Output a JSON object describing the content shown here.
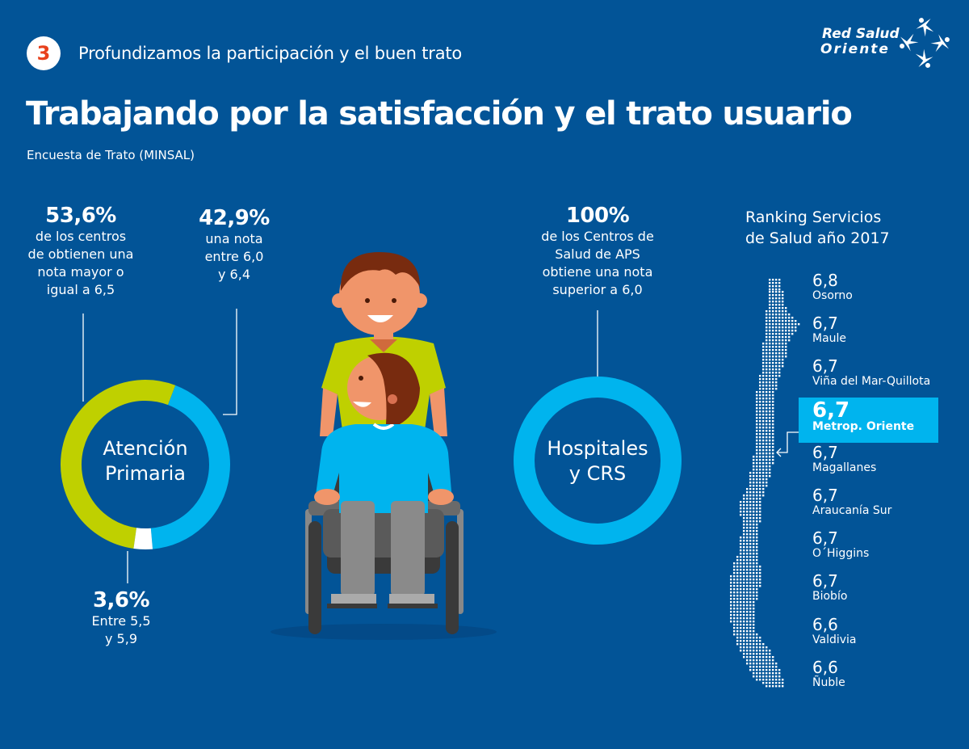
{
  "header": {
    "section_number": "3",
    "section_title": "Profundizamos la participación y el buen trato",
    "title": "Trabajando por la satisfacción y el trato usuario",
    "subtitle": "Encuesta de Trato (MINSAL)",
    "logo_line1": "Red Salud",
    "logo_line2": "Oriente"
  },
  "colors": {
    "background": "#025497",
    "green": "#bfd000",
    "cyan": "#00b4ee",
    "white": "#ffffff",
    "badge_number": "#e8401c"
  },
  "atencion_primaria": {
    "label_line1": "Atención",
    "label_line2": "Primaria",
    "stats": [
      {
        "value": "53,6%",
        "desc_lines": [
          "de los centros",
          "de obtienen una",
          "nota mayor o",
          "igual a 6,5"
        ]
      },
      {
        "value": "42,9%",
        "desc_lines": [
          "una nota",
          "entre 6,0",
          "y 6,4"
        ]
      },
      {
        "value": "3,6%",
        "desc_lines": [
          "Entre 5,5",
          "y 5,9"
        ]
      }
    ]
  },
  "hospitales": {
    "label_line1": "Hospitales",
    "label_line2": "y CRS",
    "stat": {
      "value": "100%",
      "desc_lines": [
        "de los Centros de",
        "Salud de APS",
        "obtiene una nota",
        "superior a 6,0"
      ]
    }
  },
  "illustration": {
    "description": "caregiver-pushing-wheelchair-user-icon"
  },
  "chart_data": [
    {
      "type": "pie",
      "title": "Atención Primaria",
      "donut": true,
      "categories": [
        "Nota ≥ 6,5",
        "Nota entre 6,0 y 6,4",
        "Nota entre 5,5 y 5,9"
      ],
      "values": [
        53.6,
        42.9,
        3.6
      ],
      "colors": [
        "#bfd000",
        "#00b4ee",
        "#ffffff"
      ]
    },
    {
      "type": "pie",
      "title": "Hospitales y CRS",
      "donut": true,
      "categories": [
        "Nota superior a 6,0"
      ],
      "values": [
        100
      ],
      "colors": [
        "#00b4ee"
      ]
    },
    {
      "type": "table",
      "title": "Ranking Servicios de Salud año 2017",
      "title_line1": "Ranking Servicios",
      "title_line2": "de Salud año 2017",
      "columns": [
        "score",
        "service"
      ],
      "rows": [
        {
          "score": "6,8",
          "service": "Osorno",
          "highlight": false
        },
        {
          "score": "6,7",
          "service": "Maule",
          "highlight": false
        },
        {
          "score": "6,7",
          "service": "Viña del Mar-Quillota",
          "highlight": false
        },
        {
          "score": "6,7",
          "service": "Metrop. Oriente",
          "highlight": true
        },
        {
          "score": "6,7",
          "service": "Magallanes",
          "highlight": false
        },
        {
          "score": "6,7",
          "service": "Araucanía Sur",
          "highlight": false
        },
        {
          "score": "6,7",
          "service": "O´Higgins",
          "highlight": false
        },
        {
          "score": "6,7",
          "service": "Biobío",
          "highlight": false
        },
        {
          "score": "6,6",
          "service": "Valdivia",
          "highlight": false
        },
        {
          "score": "6,6",
          "service": "Ñuble",
          "highlight": false
        }
      ]
    }
  ]
}
